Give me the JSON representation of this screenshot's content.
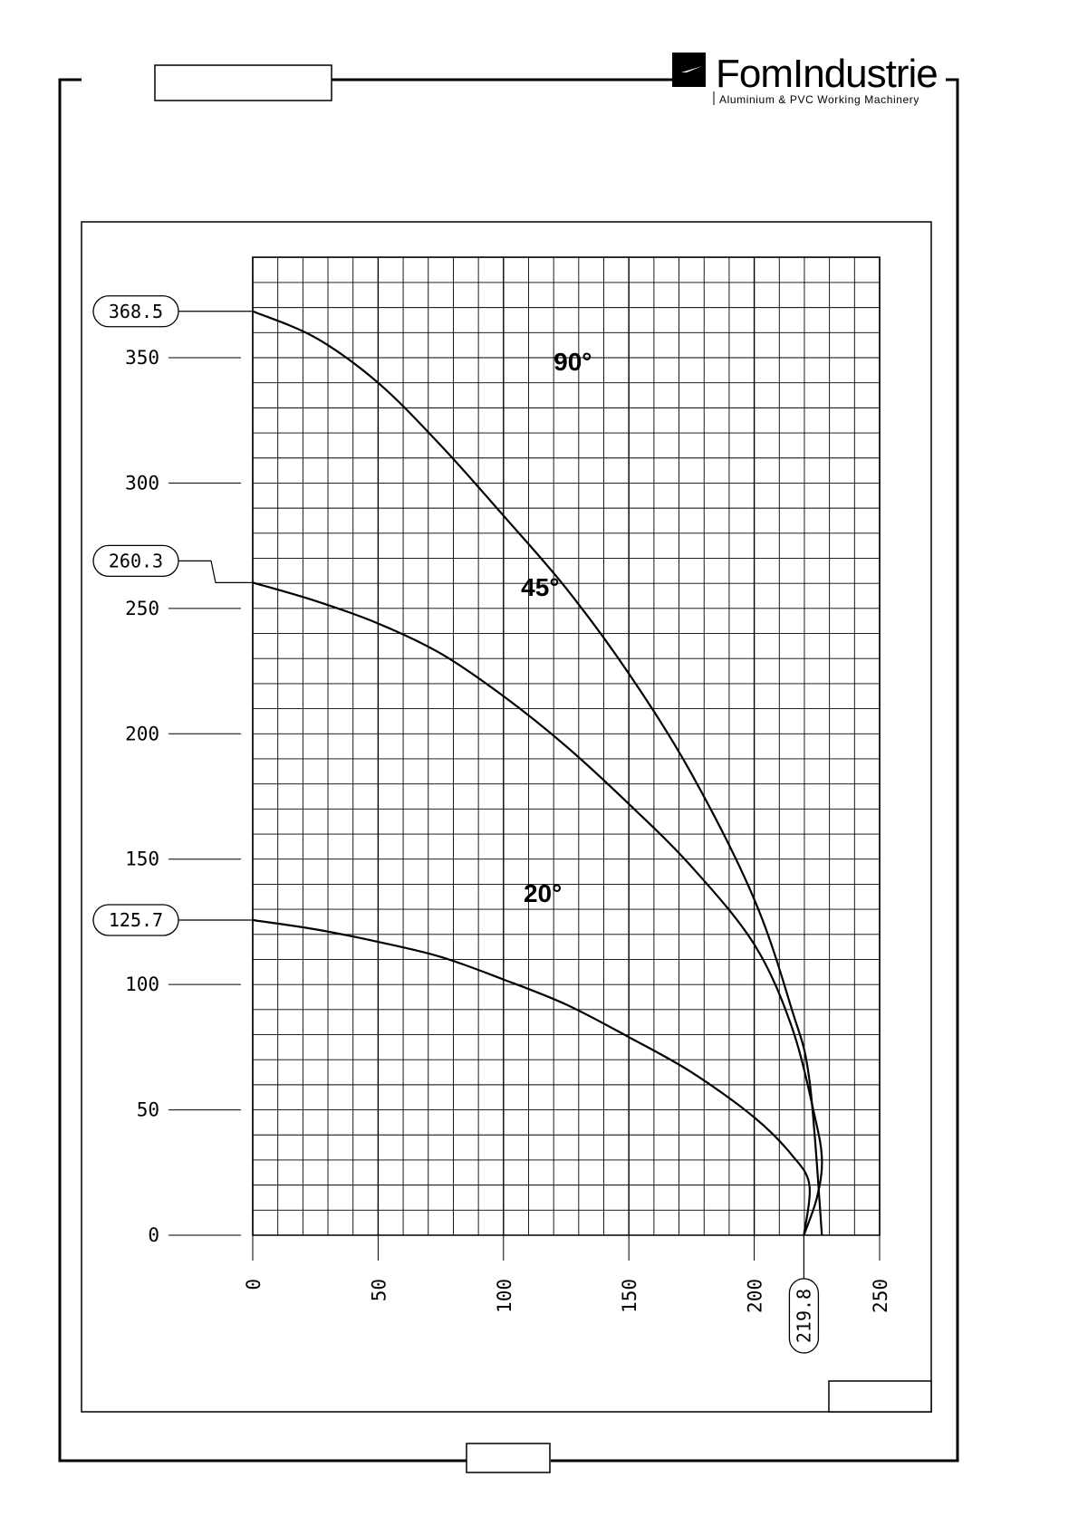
{
  "header": {
    "brand_name": "FomIndustrie",
    "brand_tagline": "Aluminium & PVC Working Machinery",
    "title_box_text": ""
  },
  "footer": {
    "page_box_text": "",
    "corner_box_text": ""
  },
  "chart_data": {
    "type": "line",
    "title": "",
    "xlabel": "",
    "ylabel": "",
    "xlim": [
      0,
      250
    ],
    "ylim": [
      0,
      390
    ],
    "x_ticks": [
      0,
      50,
      100,
      150,
      200,
      250
    ],
    "y_ticks": [
      0,
      50,
      100,
      150,
      200,
      250,
      300,
      350
    ],
    "grid": true,
    "series": [
      {
        "name": "90°",
        "points": [
          [
            0,
            368.5
          ],
          [
            25,
            358
          ],
          [
            50,
            340
          ],
          [
            75,
            315
          ],
          [
            100,
            287
          ],
          [
            125,
            258
          ],
          [
            150,
            224
          ],
          [
            175,
            184
          ],
          [
            200,
            134
          ],
          [
            215,
            90
          ],
          [
            222,
            62
          ],
          [
            227,
            0
          ]
        ]
      },
      {
        "name": "45°",
        "points": [
          [
            0,
            260.3
          ],
          [
            25,
            253
          ],
          [
            50,
            244
          ],
          [
            75,
            232
          ],
          [
            100,
            215
          ],
          [
            125,
            195
          ],
          [
            150,
            172
          ],
          [
            175,
            147
          ],
          [
            200,
            116
          ],
          [
            215,
            83
          ],
          [
            224,
            48
          ],
          [
            227,
            30
          ],
          [
            225,
            15
          ],
          [
            219.8,
            0
          ]
        ]
      },
      {
        "name": "20°",
        "points": [
          [
            0,
            125.7
          ],
          [
            25,
            122
          ],
          [
            50,
            117
          ],
          [
            75,
            111
          ],
          [
            100,
            102
          ],
          [
            125,
            92
          ],
          [
            150,
            79
          ],
          [
            175,
            65
          ],
          [
            200,
            47
          ],
          [
            215,
            32
          ],
          [
            222,
            20
          ],
          [
            219.8,
            0
          ]
        ]
      }
    ],
    "callouts": {
      "y": [
        "368.5",
        "260.3",
        "125.7"
      ],
      "x": [
        "219.8"
      ]
    }
  }
}
